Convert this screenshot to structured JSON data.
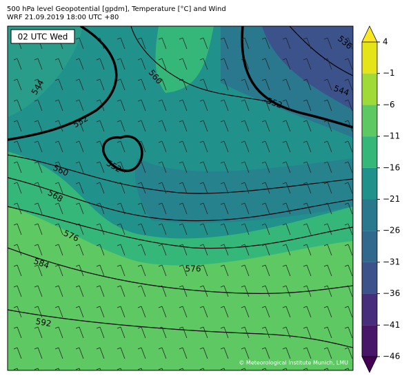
{
  "header": {
    "title": "500 hPa level Geopotential [gpdm], Temperature [°C] and Wind",
    "subtitle": "WRF 21.09.2019 18:00 UTC +80"
  },
  "map": {
    "time_label": "02 UTC Wed",
    "contour_labels": [
      "544",
      "552",
      "560",
      "536",
      "544",
      "552",
      "552",
      "560",
      "568",
      "576",
      "584",
      "576",
      "592"
    ],
    "credit": "© Meteorological Institute Munich, LMU"
  },
  "colorbar": {
    "ticks": [
      4,
      {
        "value": -1,
        "label": "−1"
      },
      {
        "value": -6,
        "label": "−6"
      },
      {
        "value": -11,
        "label": "−11"
      },
      {
        "value": -16,
        "label": "−16"
      },
      {
        "value": -21,
        "label": "−21"
      },
      {
        "value": -26,
        "label": "−26"
      },
      {
        "value": -31,
        "label": "−31"
      },
      {
        "value": -36,
        "label": "−36"
      },
      {
        "value": -41,
        "label": "−41"
      },
      {
        "value": -46,
        "label": "−46"
      }
    ],
    "colors": [
      "#e5e419",
      "#a0da39",
      "#5ec962",
      "#35b779",
      "#21918c",
      "#2a788e",
      "#31688e",
      "#3b528b",
      "#472e7c",
      "#481668"
    ],
    "over_color": "#fde725",
    "under_color": "#440154"
  }
}
